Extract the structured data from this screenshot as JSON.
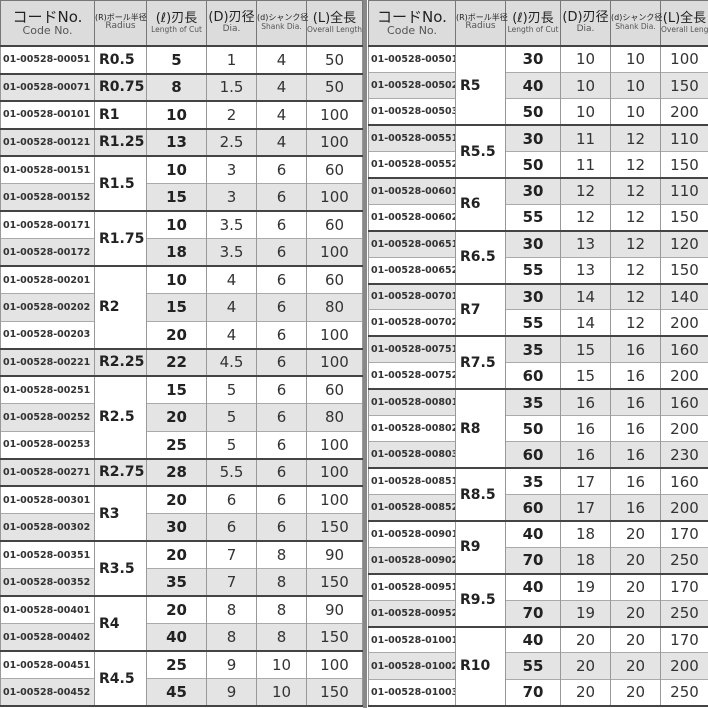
{
  "headers": {
    "code": {
      "jp": "コードNo.",
      "en": "Code No."
    },
    "radius": {
      "jp": "(R)ボール半径",
      "en": "Radius"
    },
    "length": {
      "jp": "(ℓ)刃長",
      "en": "Length of Cut"
    },
    "dia": {
      "jp": "(D)刃径",
      "en": "Dia."
    },
    "shank": {
      "jp": "(d)シャンク径",
      "en": "Shank Dia."
    },
    "overall": {
      "jp": "(L)全長",
      "en": "Overall Length"
    }
  },
  "colors": {
    "header_bg": "#dcdcdc",
    "stripe": "#e4e4e4",
    "group_border": "#444444"
  },
  "left": [
    {
      "radius": "R0.5",
      "rows": [
        [
          "01-00528-00051",
          "5",
          "1",
          "4",
          "50"
        ]
      ]
    },
    {
      "radius": "R0.75",
      "rows": [
        [
          "01-00528-00071",
          "8",
          "1.5",
          "4",
          "50"
        ]
      ]
    },
    {
      "radius": "R1",
      "rows": [
        [
          "01-00528-00101",
          "10",
          "2",
          "4",
          "100"
        ]
      ]
    },
    {
      "radius": "R1.25",
      "rows": [
        [
          "01-00528-00121",
          "13",
          "2.5",
          "4",
          "100"
        ]
      ]
    },
    {
      "radius": "R1.5",
      "rows": [
        [
          "01-00528-00151",
          "10",
          "3",
          "6",
          "60"
        ],
        [
          "01-00528-00152",
          "15",
          "3",
          "6",
          "100"
        ]
      ]
    },
    {
      "radius": "R1.75",
      "rows": [
        [
          "01-00528-00171",
          "10",
          "3.5",
          "6",
          "60"
        ],
        [
          "01-00528-00172",
          "18",
          "3.5",
          "6",
          "100"
        ]
      ]
    },
    {
      "radius": "R2",
      "rows": [
        [
          "01-00528-00201",
          "10",
          "4",
          "6",
          "60"
        ],
        [
          "01-00528-00202",
          "15",
          "4",
          "6",
          "80"
        ],
        [
          "01-00528-00203",
          "20",
          "4",
          "6",
          "100"
        ]
      ]
    },
    {
      "radius": "R2.25",
      "rows": [
        [
          "01-00528-00221",
          "22",
          "4.5",
          "6",
          "100"
        ]
      ]
    },
    {
      "radius": "R2.5",
      "rows": [
        [
          "01-00528-00251",
          "15",
          "5",
          "6",
          "60"
        ],
        [
          "01-00528-00252",
          "20",
          "5",
          "6",
          "80"
        ],
        [
          "01-00528-00253",
          "25",
          "5",
          "6",
          "100"
        ]
      ]
    },
    {
      "radius": "R2.75",
      "rows": [
        [
          "01-00528-00271",
          "28",
          "5.5",
          "6",
          "100"
        ]
      ]
    },
    {
      "radius": "R3",
      "rows": [
        [
          "01-00528-00301",
          "20",
          "6",
          "6",
          "100"
        ],
        [
          "01-00528-00302",
          "30",
          "6",
          "6",
          "150"
        ]
      ]
    },
    {
      "radius": "R3.5",
      "rows": [
        [
          "01-00528-00351",
          "20",
          "7",
          "8",
          "90"
        ],
        [
          "01-00528-00352",
          "35",
          "7",
          "8",
          "150"
        ]
      ]
    },
    {
      "radius": "R4",
      "rows": [
        [
          "01-00528-00401",
          "20",
          "8",
          "8",
          "90"
        ],
        [
          "01-00528-00402",
          "40",
          "8",
          "8",
          "150"
        ]
      ]
    },
    {
      "radius": "R4.5",
      "rows": [
        [
          "01-00528-00451",
          "25",
          "9",
          "10",
          "100"
        ],
        [
          "01-00528-00452",
          "45",
          "9",
          "10",
          "150"
        ]
      ]
    }
  ],
  "right": [
    {
      "radius": "R5",
      "rows": [
        [
          "01-00528-00501",
          "30",
          "10",
          "10",
          "100"
        ],
        [
          "01-00528-00502",
          "40",
          "10",
          "10",
          "150"
        ],
        [
          "01-00528-00503",
          "50",
          "10",
          "10",
          "200"
        ]
      ]
    },
    {
      "radius": "R5.5",
      "rows": [
        [
          "01-00528-00551",
          "30",
          "11",
          "12",
          "110"
        ],
        [
          "01-00528-00552",
          "50",
          "11",
          "12",
          "150"
        ]
      ]
    },
    {
      "radius": "R6",
      "rows": [
        [
          "01-00528-00601",
          "30",
          "12",
          "12",
          "110"
        ],
        [
          "01-00528-00602",
          "55",
          "12",
          "12",
          "150"
        ]
      ]
    },
    {
      "radius": "R6.5",
      "rows": [
        [
          "01-00528-00651",
          "30",
          "13",
          "12",
          "120"
        ],
        [
          "01-00528-00652",
          "55",
          "13",
          "12",
          "150"
        ]
      ]
    },
    {
      "radius": "R7",
      "rows": [
        [
          "01-00528-00701",
          "30",
          "14",
          "12",
          "140"
        ],
        [
          "01-00528-00702",
          "55",
          "14",
          "12",
          "200"
        ]
      ]
    },
    {
      "radius": "R7.5",
      "rows": [
        [
          "01-00528-00751",
          "35",
          "15",
          "16",
          "160"
        ],
        [
          "01-00528-00752",
          "60",
          "15",
          "16",
          "200"
        ]
      ]
    },
    {
      "radius": "R8",
      "rows": [
        [
          "01-00528-00801",
          "35",
          "16",
          "16",
          "160"
        ],
        [
          "01-00528-00802",
          "50",
          "16",
          "16",
          "200"
        ],
        [
          "01-00528-00803",
          "60",
          "16",
          "16",
          "230"
        ]
      ]
    },
    {
      "radius": "R8.5",
      "rows": [
        [
          "01-00528-00851",
          "35",
          "17",
          "16",
          "160"
        ],
        [
          "01-00528-00852",
          "60",
          "17",
          "16",
          "200"
        ]
      ]
    },
    {
      "radius": "R9",
      "rows": [
        [
          "01-00528-00901",
          "40",
          "18",
          "20",
          "170"
        ],
        [
          "01-00528-00902",
          "70",
          "18",
          "20",
          "250"
        ]
      ]
    },
    {
      "radius": "R9.5",
      "rows": [
        [
          "01-00528-00951",
          "40",
          "19",
          "20",
          "170"
        ],
        [
          "01-00528-00952",
          "70",
          "19",
          "20",
          "250"
        ]
      ]
    },
    {
      "radius": "R10",
      "rows": [
        [
          "01-00528-01001",
          "40",
          "20",
          "20",
          "170"
        ],
        [
          "01-00528-01002",
          "55",
          "20",
          "20",
          "200"
        ],
        [
          "01-00528-01003",
          "70",
          "20",
          "20",
          "250"
        ]
      ]
    }
  ]
}
